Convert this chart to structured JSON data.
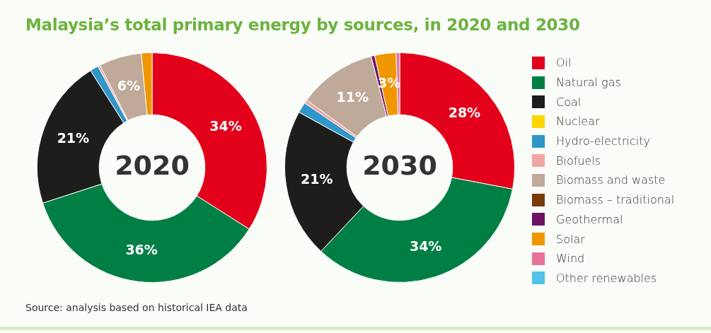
{
  "chart_data": {
    "type": "donut",
    "title": "Malaysia’s total primary energy by sources, in 2020 and 2030",
    "categories": [
      "Oil",
      "Natural gas",
      "Coal",
      "Nuclear",
      "Hydro-electricity",
      "Biofuels",
      "Biomass and waste",
      "Biomass – traditional",
      "Geothermal",
      "Solar",
      "Wind",
      "Other renewables"
    ],
    "colors": [
      "#e2001a",
      "#007f45",
      "#1d1d1b",
      "#ffd500",
      "#2f96c8",
      "#f0a6a6",
      "#bfa999",
      "#7a3b0a",
      "#6e1266",
      "#f09600",
      "#e8739a",
      "#4fc3e8"
    ],
    "series": [
      {
        "name": "2020",
        "values": [
          34,
          36,
          21,
          0,
          1.2,
          0.3,
          6,
          0,
          0,
          1.5,
          0,
          0
        ],
        "value_labels": [
          "34%",
          "36%",
          "21%",
          null,
          null,
          null,
          "6%",
          null,
          null,
          null,
          null,
          null
        ]
      },
      {
        "name": "2030",
        "values": [
          28,
          34,
          21,
          0,
          1.5,
          0.5,
          11,
          0,
          0.5,
          3,
          0.5,
          0
        ],
        "value_labels": [
          "28%",
          "34%",
          "21%",
          null,
          null,
          null,
          "11%",
          null,
          null,
          "3%",
          null,
          null
        ]
      }
    ],
    "legend": "right",
    "annotations": [
      "Source: analysis based on historical IEA data"
    ]
  }
}
